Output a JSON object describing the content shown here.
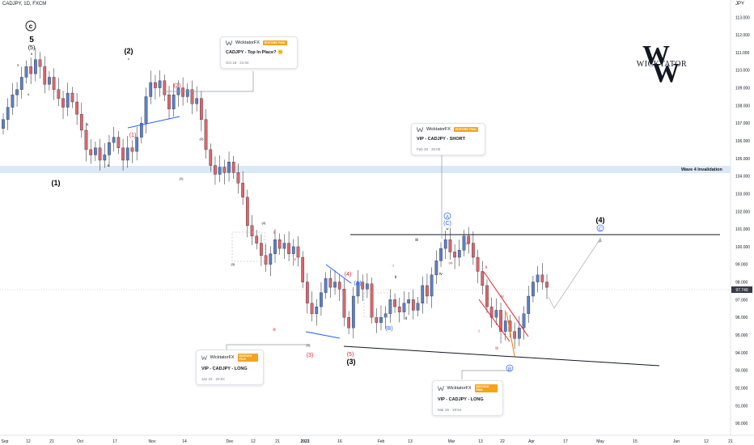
{
  "symbol": "CADJPY, 1D, FXCM",
  "currency": "JPY",
  "price_label": "97.740",
  "watermark": "WICKTATOR",
  "invalidation_label": "Wave 4 Invalidation",
  "cards": [
    {
      "author": "WicktatorFX",
      "badge": "EDITORS' PICK",
      "title": "CADJPY - Top In Place? 😕",
      "date": "Oct 18 · 21:04"
    },
    {
      "author": "WicktatorFX",
      "badge": "EDITORS' PICK",
      "title": "VIP - CADJPY - SHORT",
      "date": "Feb 28 · 20:00"
    },
    {
      "author": "WicktatorFX",
      "badge": "EDITORS' PICK",
      "title": "VIP - CADJPY - LONG",
      "date": "Jan 15 · 20:04"
    },
    {
      "author": "WicktatorFX",
      "badge": "EDITORS' PICK",
      "title": "VIP - CADJPY - LONG",
      "date": "Mar 26 · 18:54"
    }
  ],
  "wave_labels": {
    "circle_c": "c",
    "five": "5",
    "five_paren": "(5)",
    "five_small": "5",
    "three_small": "3",
    "four_small": "4",
    "w1": "(1)",
    "w2": "(2)",
    "w3": "(3)",
    "w4": "(4)",
    "w5red": "(5)",
    "c_small": "c",
    "a_small": "A",
    "b_small": "B",
    "red_1": "(1)",
    "red_2": "(2)",
    "red_3": "(3)",
    "red_4": "(4)",
    "sub_1": "(1)",
    "sub_2": "(2)",
    "sub_3": "(3)",
    "sub_4": "(4)",
    "iii": "iii",
    "iv": "iv",
    "i": "i",
    "ii": "ii",
    "blue_A": "(A)",
    "blue_B": "(B)",
    "circ_A": "A",
    "circ_B": "B",
    "circ_C": "C",
    "paren_C": "(C)",
    "w_small": "w",
    "red_a": "(a)",
    "red_b": "(b)"
  },
  "chart_data": {
    "type": "candlestick",
    "title": "CADJPY, 1D, FXCM",
    "ylabel": "JPY",
    "ylim": [
      89.5,
      113.7
    ],
    "y_ticks": [
      "113.000",
      "112.000",
      "111.000",
      "110.000",
      "109.000",
      "108.000",
      "107.000",
      "106.000",
      "105.000",
      "104.000",
      "103.000",
      "102.000",
      "101.000",
      "100.000",
      "99.000",
      "98.000",
      "97.000",
      "96.000",
      "95.000",
      "94.000",
      "93.000",
      "92.000",
      "91.000",
      "90.000"
    ],
    "x_ticks": [
      "Sep",
      "12",
      "21",
      "Oct",
      "17",
      "Nov",
      "14",
      "Dec",
      "12",
      "21",
      "2023",
      "16",
      "Feb",
      "13",
      "Mar",
      "13",
      "22",
      "Apr",
      "17",
      "May",
      "15",
      "Jun",
      "12",
      "21"
    ],
    "last_price": 97.74,
    "invalidation_level": 104.2,
    "closes": [
      107.2,
      107.9,
      108.6,
      108.9,
      109.6,
      110.2,
      109.8,
      110.6,
      110.2,
      109.2,
      109.6,
      108.9,
      108.4,
      107.9,
      108.7,
      108.2,
      107.5,
      106.6,
      105.5,
      105.2,
      105.6,
      104.9,
      105.2,
      105.9,
      106.2,
      105.6,
      104.9,
      105.6,
      105.4,
      106.2,
      107.0,
      108.5,
      109.3,
      109.0,
      109.4,
      108.6,
      107.8,
      108.6,
      109.0,
      108.5,
      108.9,
      108.1,
      108.4,
      107.2,
      105.5,
      104.6,
      104.1,
      104.5,
      104.2,
      104.8,
      104.2,
      103.6,
      102.8,
      101.2,
      100.6,
      100.2,
      99.5,
      99.0,
      99.6,
      100.4,
      99.9,
      100.2,
      99.6,
      100.0,
      99.4,
      98.0,
      96.8,
      96.2,
      96.6,
      97.4,
      98.2,
      97.7,
      98.0,
      97.6,
      96.0,
      95.4,
      97.2,
      98.0,
      97.6,
      97.9,
      96.0,
      95.7,
      96.0,
      96.2,
      97.0,
      96.6,
      96.3,
      96.8,
      97.0,
      96.4,
      96.8,
      97.8,
      97.2,
      98.4,
      99.2,
      99.9,
      100.4,
      99.7,
      99.4,
      99.8,
      100.6,
      100.2,
      99.4,
      98.6,
      97.8,
      96.6,
      96.0,
      96.4,
      95.2,
      95.8,
      95.2,
      94.8,
      95.4,
      96.2,
      97.2,
      98.0,
      98.4,
      98.0,
      97.7
    ]
  }
}
